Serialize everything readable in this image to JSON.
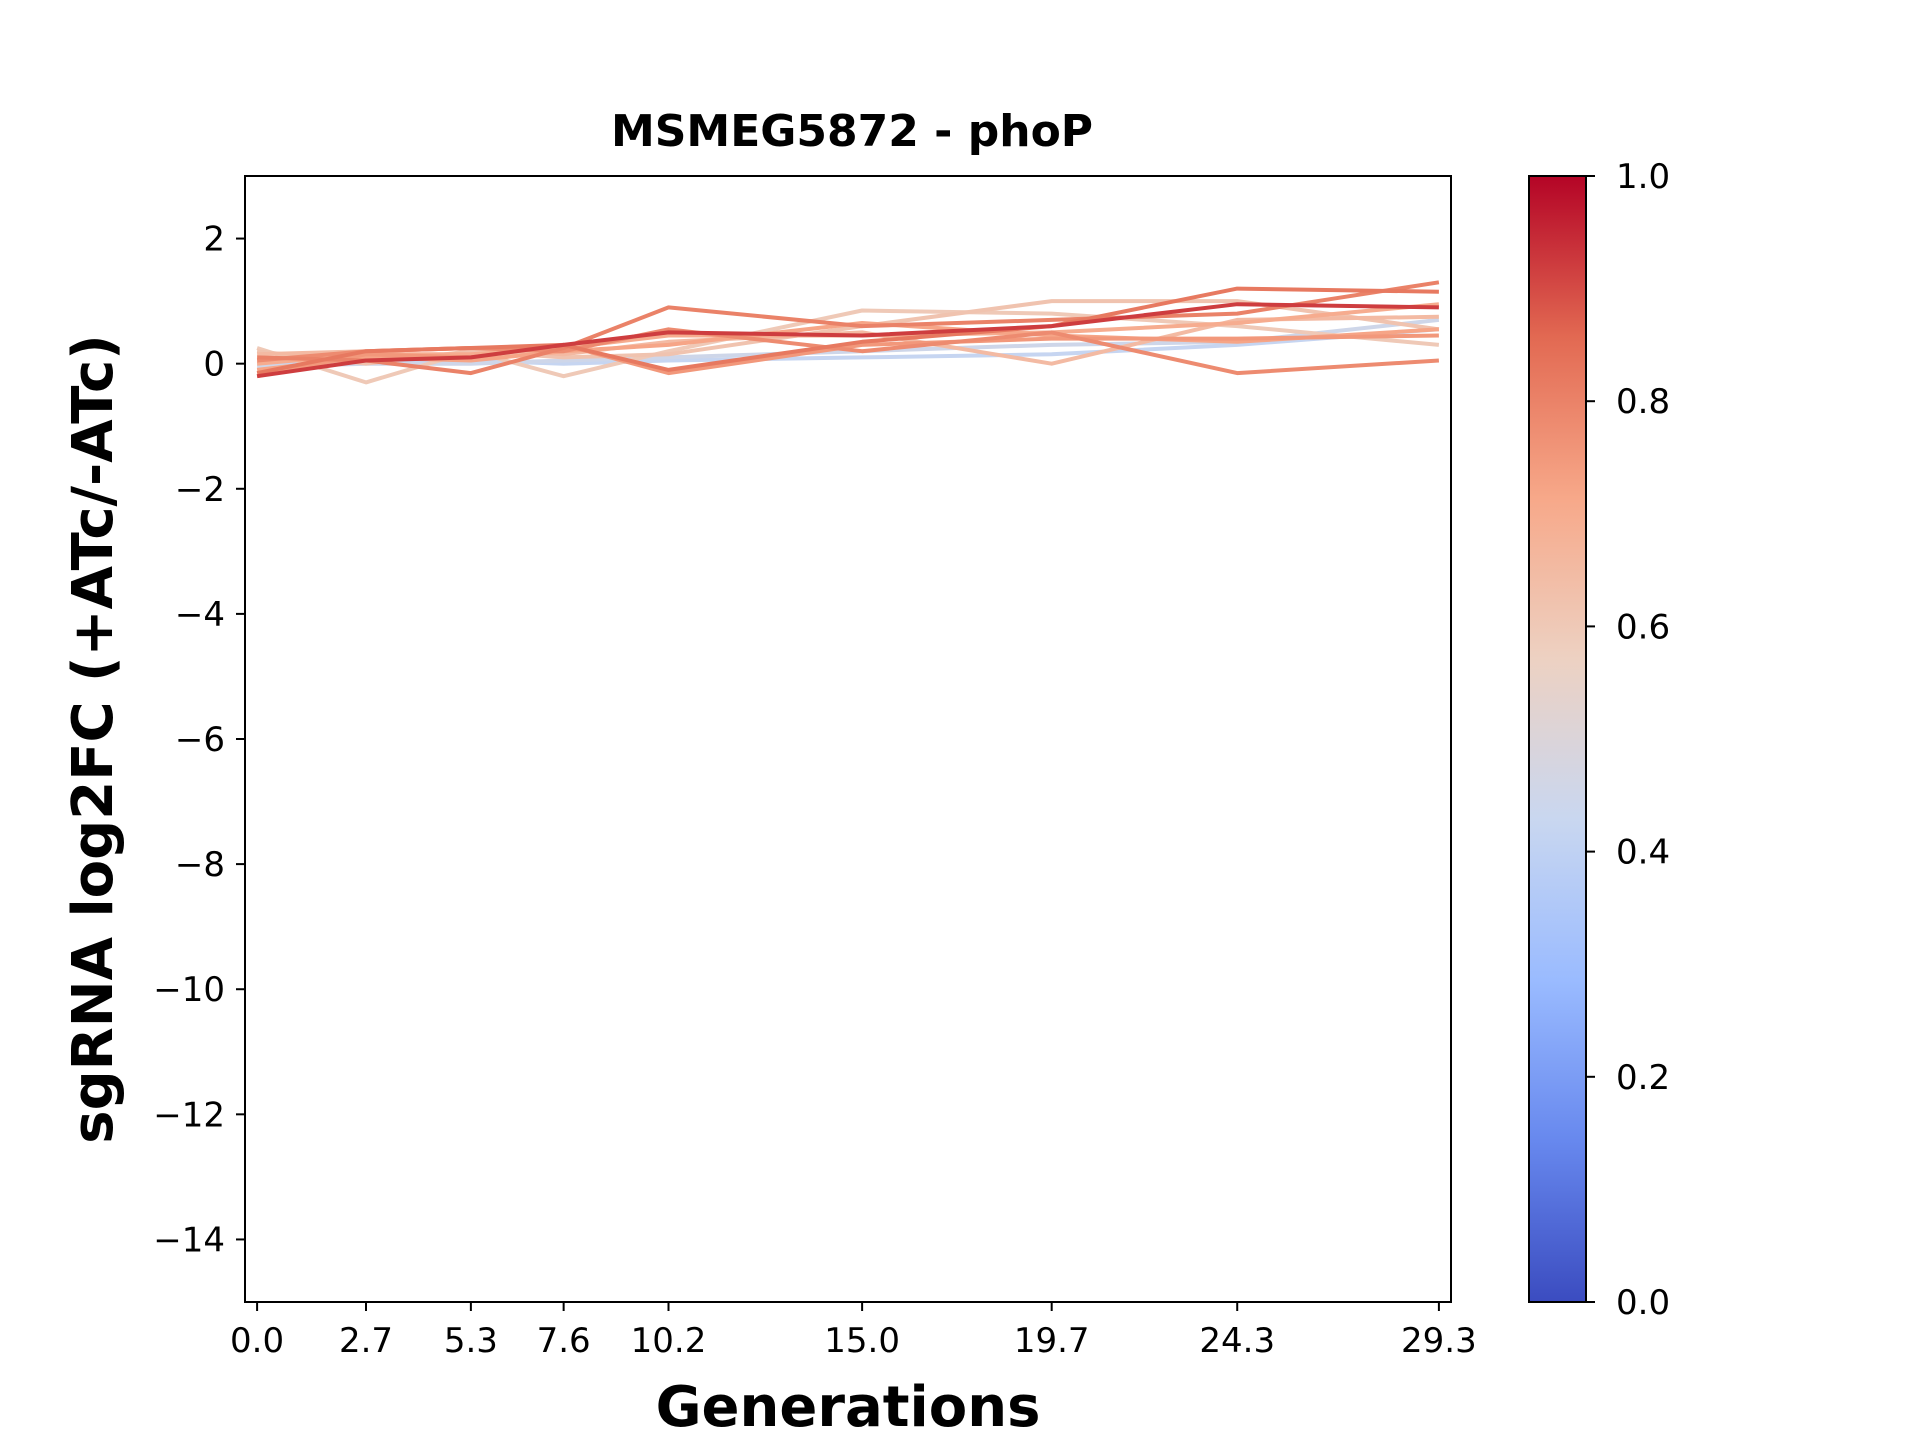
{
  "chart_data": {
    "type": "line",
    "title": "MSMEG5872 - phoP",
    "xlabel": "Generations",
    "ylabel": "sgRNA log2FC (+ATc/-ATc)",
    "x": [
      0.0,
      2.7,
      5.3,
      7.6,
      10.2,
      15.0,
      19.7,
      24.3,
      29.3
    ],
    "x_tick_labels": [
      "0.0",
      "2.7",
      "5.3",
      "7.6",
      "10.2",
      "15.0",
      "19.7",
      "24.3",
      "29.3"
    ],
    "ylim": [
      -15,
      3
    ],
    "y_ticks": [
      2,
      0,
      -2,
      -4,
      -6,
      -8,
      -10,
      -12,
      -14
    ],
    "y_tick_labels": [
      "2",
      "0",
      "−2",
      "−4",
      "−6",
      "−8",
      "−10",
      "−12",
      "−14"
    ],
    "grid": false,
    "series": [
      {
        "color_value": 0.42,
        "values": [
          0.0,
          0.05,
          0.05,
          0.0,
          0.05,
          0.1,
          0.15,
          0.3,
          0.55
        ]
      },
      {
        "color_value": 0.45,
        "values": [
          -0.05,
          0.0,
          0.0,
          0.05,
          0.1,
          0.2,
          0.3,
          0.35,
          0.7
        ]
      },
      {
        "color_value": 0.6,
        "values": [
          0.25,
          -0.3,
          0.2,
          -0.2,
          0.2,
          0.85,
          0.8,
          0.6,
          0.3
        ]
      },
      {
        "color_value": 0.62,
        "values": [
          0.2,
          0.0,
          0.2,
          0.1,
          0.15,
          0.6,
          1.0,
          1.0,
          0.55
        ]
      },
      {
        "color_value": 0.65,
        "values": [
          0.15,
          0.2,
          0.25,
          0.15,
          0.35,
          0.5,
          0.0,
          0.7,
          0.75
        ]
      },
      {
        "color_value": 0.7,
        "values": [
          0.0,
          0.15,
          0.15,
          0.25,
          0.45,
          0.45,
          0.5,
          0.65,
          0.95
        ]
      },
      {
        "color_value": 0.72,
        "values": [
          -0.1,
          0.1,
          0.05,
          0.2,
          0.3,
          0.65,
          0.45,
          0.35,
          0.55
        ]
      },
      {
        "color_value": 0.75,
        "values": [
          -0.2,
          0.15,
          0.1,
          0.3,
          -0.15,
          0.3,
          0.4,
          0.4,
          0.45
        ]
      },
      {
        "color_value": 0.78,
        "values": [
          0.05,
          0.2,
          0.25,
          0.2,
          0.55,
          0.2,
          0.5,
          -0.15,
          0.05
        ]
      },
      {
        "color_value": 0.8,
        "values": [
          0.1,
          0.05,
          -0.15,
          0.25,
          0.9,
          0.6,
          0.7,
          0.8,
          1.3
        ]
      },
      {
        "color_value": 0.82,
        "values": [
          -0.15,
          0.2,
          0.25,
          0.3,
          -0.1,
          0.35,
          0.6,
          1.2,
          1.15
        ]
      },
      {
        "color_value": 0.92,
        "values": [
          -0.2,
          0.05,
          0.1,
          0.3,
          0.5,
          0.45,
          0.6,
          0.95,
          0.9
        ]
      }
    ],
    "colorbar": {
      "colormap": "coolwarm",
      "range": [
        0.0,
        1.0
      ],
      "tick_labels": [
        "0.0",
        "0.2",
        "0.4",
        "0.6",
        "0.8",
        "1.0"
      ],
      "ticks": [
        0.0,
        0.2,
        0.4,
        0.6,
        0.8,
        1.0
      ],
      "colors": [
        "#3b4cc0",
        "#6788ee",
        "#9abbff",
        "#c9d7f0",
        "#edd1c2",
        "#f7a889",
        "#e26952",
        "#b40426"
      ]
    }
  }
}
